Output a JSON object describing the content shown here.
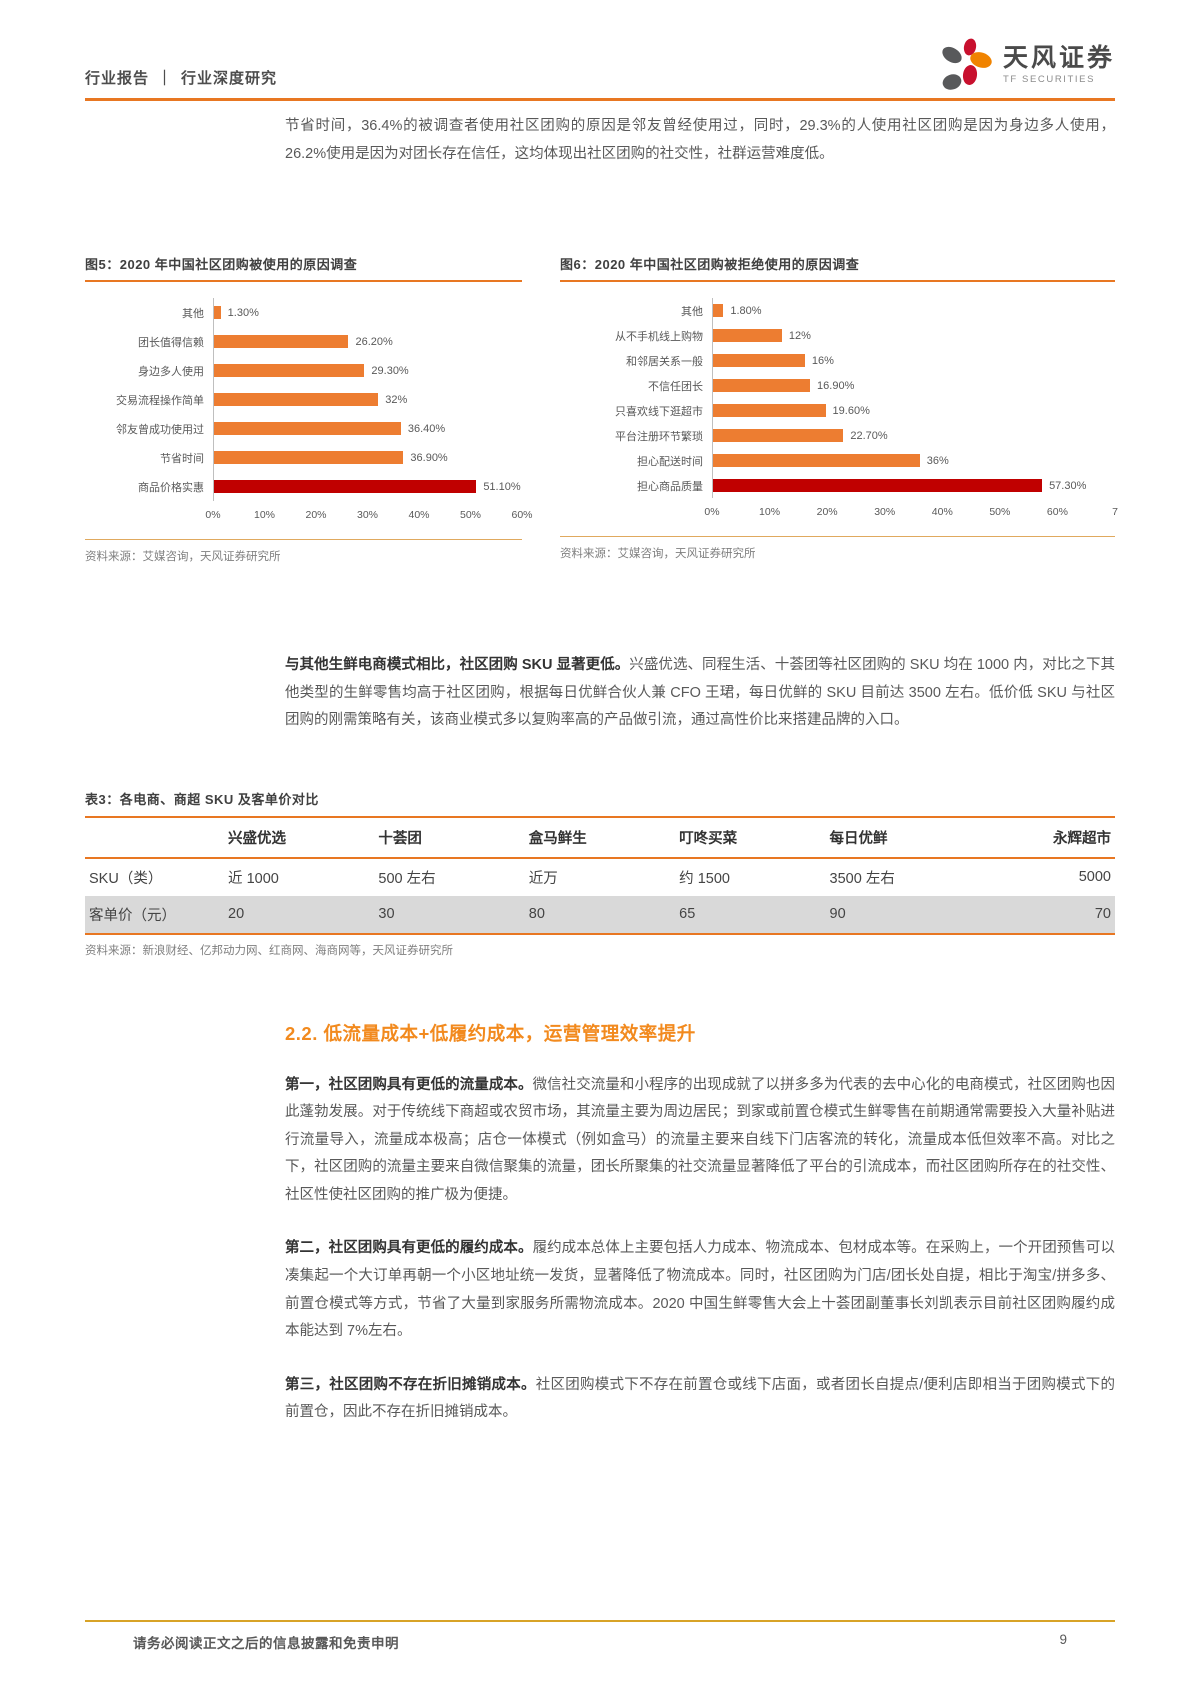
{
  "header": {
    "category": "行业报告",
    "separator": "｜",
    "subcategory": "行业深度研究",
    "brand": "天风证券",
    "brand_sub": "TF SECURITIES"
  },
  "intro_paragraph": "节省时间，36.4%的被调查者使用社区团购的原因是邻友曾经使用过，同时，29.3%的人使用社区团购是因为身边多人使用，26.2%使用是因为对团长存在信任，这均体现出社区团购的社交性，社群运营难度低。",
  "chart_data": [
    {
      "type": "bar",
      "orientation": "horizontal",
      "title": "图5：2020 年中国社区团购被使用的原因调查",
      "categories": [
        "其他",
        "团长值得信赖",
        "身边多人使用",
        "交易流程操作简单",
        "邻友曾成功使用过",
        "节省时间",
        "商品价格实惠"
      ],
      "values": [
        1.3,
        26.2,
        29.3,
        32,
        36.4,
        36.9,
        51.1
      ],
      "value_labels": [
        "1.30%",
        "26.20%",
        "29.30%",
        "32%",
        "36.40%",
        "36.90%",
        "51.10%"
      ],
      "highlight_index": 6,
      "bar_color": "#ED7D31",
      "highlight_color": "#C00000",
      "x_max": 60,
      "x_ticks": [
        {
          "label": "0%",
          "v": 0
        },
        {
          "label": "10%",
          "v": 10
        },
        {
          "label": "20%",
          "v": 20
        },
        {
          "label": "30%",
          "v": 30
        },
        {
          "label": "40%",
          "v": 40
        },
        {
          "label": "50%",
          "v": 50
        },
        {
          "label": "60%",
          "v": 60
        }
      ],
      "grid": false,
      "legend": false,
      "source": "资料来源：艾媒咨询，天风证券研究所"
    },
    {
      "type": "bar",
      "orientation": "horizontal",
      "title": "图6：2020 年中国社区团购被拒绝使用的原因调查",
      "categories": [
        "其他",
        "从不手机线上购物",
        "和邻居关系一般",
        "不信任团长",
        "只喜欢线下逛超市",
        "平台注册环节繁琐",
        "担心配送时间",
        "担心商品质量"
      ],
      "values": [
        1.8,
        12,
        16,
        16.9,
        19.6,
        22.7,
        36,
        57.3
      ],
      "value_labels": [
        "1.80%",
        "12%",
        "16%",
        "16.90%",
        "19.60%",
        "22.70%",
        "36%",
        "57.30%"
      ],
      "highlight_index": 7,
      "bar_color": "#ED7D31",
      "highlight_color": "#C00000",
      "x_max": 70,
      "x_ticks": [
        {
          "label": "0%",
          "v": 0
        },
        {
          "label": "10%",
          "v": 10
        },
        {
          "label": "20%",
          "v": 20
        },
        {
          "label": "30%",
          "v": 30
        },
        {
          "label": "40%",
          "v": 40
        },
        {
          "label": "50%",
          "v": 50
        },
        {
          "label": "60%",
          "v": 60
        },
        {
          "label": "7",
          "v": 70
        }
      ],
      "grid": false,
      "legend": false,
      "source": "资料来源：艾媒咨询，天风证券研究所"
    }
  ],
  "sku_paragraph": {
    "bold": "与其他生鲜电商模式相比，社区团购 SKU 显著更低。",
    "rest": "兴盛优选、同程生活、十荟团等社区团购的 SKU 均在 1000 内，对比之下其他类型的生鲜零售均高于社区团购，根据每日优鲜合伙人兼 CFO 王珺，每日优鲜的 SKU 目前达 3500 左右。低价低 SKU 与社区团购的刚需策略有关，该商业模式多以复购率高的产品做引流，通过高性价比来搭建品牌的入口。"
  },
  "table": {
    "title": "表3：各电商、商超 SKU 及客单价对比",
    "headers": [
      "",
      "兴盛优选",
      "十荟团",
      "盒马鲜生",
      "叮咚买菜",
      "每日优鲜",
      "永辉超市"
    ],
    "rows": [
      {
        "label": "SKU（类）",
        "cells": [
          "近 1000",
          "500 左右",
          "近万",
          "约 1500",
          "3500 左右",
          "5000"
        ]
      },
      {
        "label": "客单价（元）",
        "cells": [
          "20",
          "30",
          "80",
          "65",
          "90",
          "70"
        ]
      }
    ],
    "source": "资料来源：新浪财经、亿邦动力网、红商网、海商网等，天风证券研究所"
  },
  "section": {
    "heading": "2.2. 低流量成本+低履约成本，运营管理效率提升",
    "paragraphs": [
      {
        "bold": "第一，社区团购具有更低的流量成本。",
        "rest": "微信社交流量和小程序的出现成就了以拼多多为代表的去中心化的电商模式，社区团购也因此蓬勃发展。对于传统线下商超或农贸市场，其流量主要为周边居民；到家或前置仓模式生鲜零售在前期通常需要投入大量补贴进行流量导入，流量成本极高；店仓一体模式（例如盒马）的流量主要来自线下门店客流的转化，流量成本低但效率不高。对比之下，社区团购的流量主要来自微信聚集的流量，团长所聚集的社交流量显著降低了平台的引流成本，而社区团购所存在的社交性、社区性使社区团购的推广极为便捷。"
      },
      {
        "bold": "第二，社区团购具有更低的履约成本。",
        "rest": "履约成本总体上主要包括人力成本、物流成本、包材成本等。在采购上，一个开团预售可以凑集起一个大订单再朝一个小区地址统一发货，显著降低了物流成本。同时，社区团购为门店/团长处自提，相比于淘宝/拼多多、前置仓模式等方式，节省了大量到家服务所需物流成本。2020 中国生鲜零售大会上十荟团副董事长刘凯表示目前社区团购履约成本能达到 7%左右。"
      },
      {
        "bold": "第三，社区团购不存在折旧摊销成本。",
        "rest": "社区团购模式下不存在前置仓或线下店面，或者团长自提点/便利店即相当于团购模式下的前置仓，因此不存在折旧摊销成本。"
      }
    ]
  },
  "footer": {
    "disclaimer": "请务必阅读正文之后的信息披露和免责申明",
    "page_number": "9"
  },
  "colors": {
    "accent_orange": "#E87722",
    "bar_orange": "#ED7D31",
    "highlight_red": "#C00000",
    "heading_orange": "#F28A1E",
    "text_gray": "#595959",
    "table_shaded_row": "#D9D9D9",
    "footer_line": "#D8A327"
  }
}
